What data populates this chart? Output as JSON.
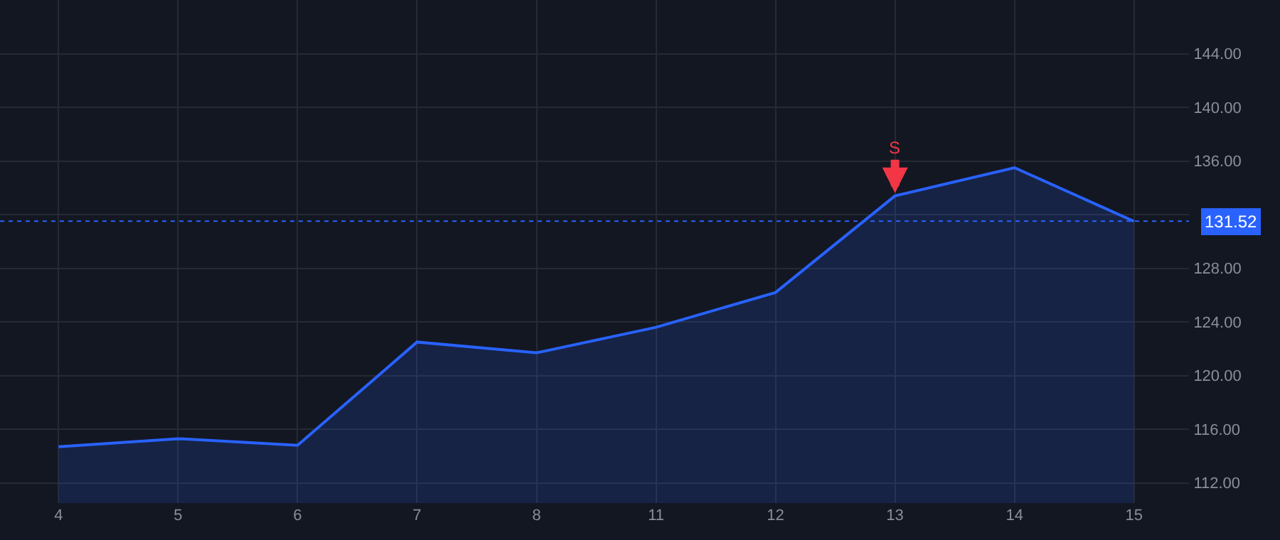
{
  "chart_data": {
    "type": "area",
    "categories": [
      "4",
      "5",
      "6",
      "7",
      "8",
      "11",
      "12",
      "13",
      "14",
      "15"
    ],
    "series": [
      {
        "color": "#2962ff",
        "values": [
          114.7,
          115.3,
          114.8,
          122.5,
          121.7,
          123.6,
          126.2,
          133.4,
          135.5,
          131.5
        ]
      }
    ],
    "ylim": [
      110.5,
      148
    ],
    "yticks": [
      {
        "value": 112,
        "label": "112.00"
      },
      {
        "value": 116,
        "label": "116.00"
      },
      {
        "value": 120,
        "label": "120.00"
      },
      {
        "value": 124,
        "label": "124.00"
      },
      {
        "value": 128,
        "label": "128.00"
      },
      {
        "value": 132,
        "label": null
      },
      {
        "value": 136,
        "label": "136.00"
      },
      {
        "value": 140,
        "label": "140.00"
      },
      {
        "value": 144,
        "label": "144.00"
      }
    ],
    "ref_lines": [
      {
        "axis": "y",
        "value": 131.52,
        "label": "131.52",
        "color": "#2962ff",
        "line_style": "dotted"
      }
    ],
    "annotations": [
      {
        "text": "S",
        "x": "13",
        "y": 133.4
      }
    ],
    "grid": true,
    "marker": "none",
    "line_style": "solid"
  }
}
